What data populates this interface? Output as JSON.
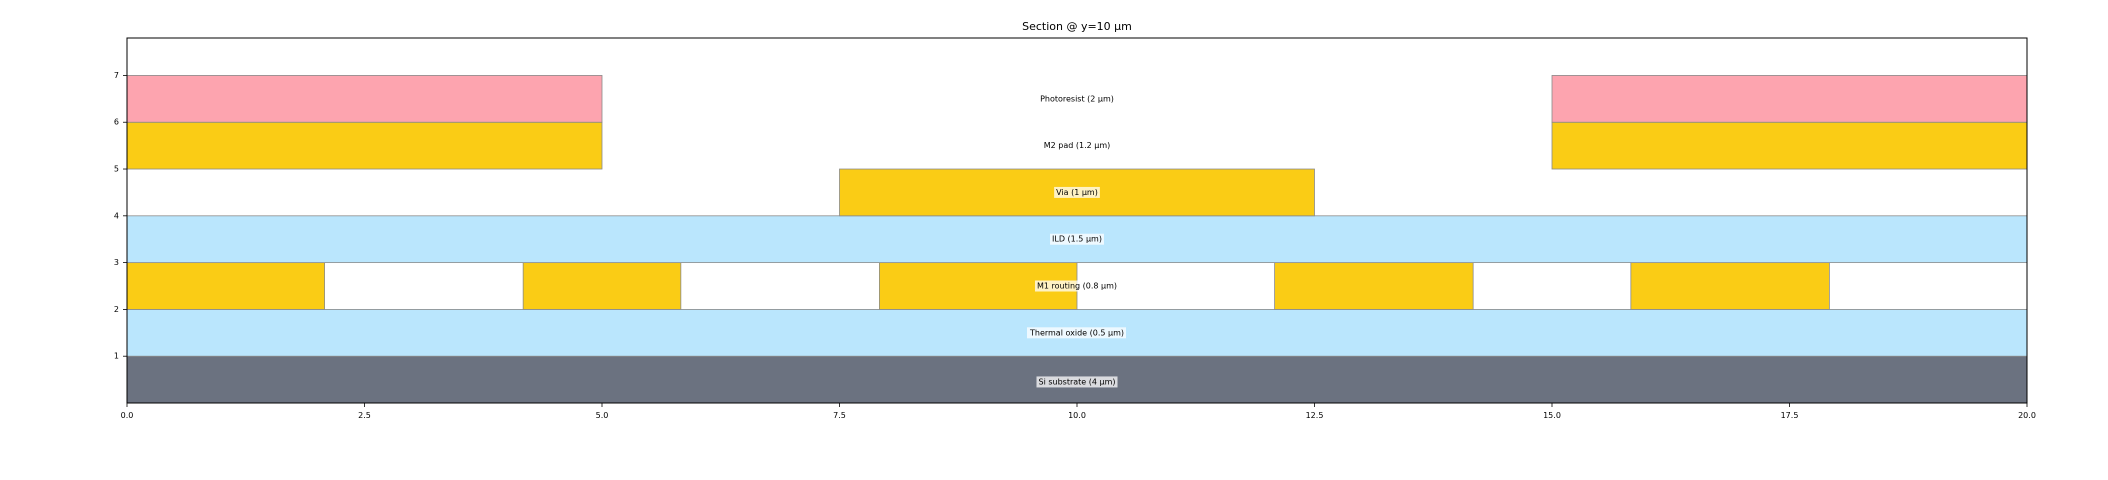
{
  "chart_data": {
    "type": "cross-section",
    "title": "Section @ y=10 µm",
    "xlabel": "",
    "ylabel": "",
    "xlim": [
      0,
      20
    ],
    "ylim": [
      0,
      7.8
    ],
    "x_ticks": [
      "0.0",
      "2.5",
      "5.0",
      "7.5",
      "10.0",
      "12.5",
      "15.0",
      "17.5",
      "20.0"
    ],
    "y_ticks": [
      "1",
      "2",
      "3",
      "4",
      "5",
      "6",
      "7"
    ],
    "grid": false,
    "legend": "none",
    "colors": {
      "substrate": "#6b7280",
      "oxide": "#bae6fd",
      "metal": "#facc15",
      "photoresist": "#fda4af",
      "edge": "#8a8a8a"
    },
    "layers": [
      {
        "label": "Si substrate  (4 µm)",
        "material": "substrate",
        "label_y": 0.45,
        "label_box": true,
        "blocks": [
          {
            "x0": 0,
            "x1": 20,
            "y0": -3,
            "y1": 1
          }
        ]
      },
      {
        "label": "Thermal oxide  (0.5 µm)",
        "material": "oxide",
        "label_y": 1.5,
        "label_box": true,
        "blocks": [
          {
            "x0": 0,
            "x1": 20,
            "y0": 1,
            "y1": 2
          }
        ]
      },
      {
        "label": "M1 routing  (0.8 µm)",
        "material": "metal",
        "label_y": 2.5,
        "label_box": true,
        "blocks": [
          {
            "x0": 0,
            "x1": 2.08,
            "y0": 2,
            "y1": 3
          },
          {
            "x0": 4.17,
            "x1": 5.83,
            "y0": 2,
            "y1": 3
          },
          {
            "x0": 7.92,
            "x1": 10.0,
            "y0": 2,
            "y1": 3
          },
          {
            "x0": 12.08,
            "x1": 14.17,
            "y0": 2,
            "y1": 3
          },
          {
            "x0": 15.83,
            "x1": 17.92,
            "y0": 2,
            "y1": 3
          }
        ]
      },
      {
        "label": "ILD  (1.5 µm)",
        "material": "oxide",
        "label_y": 3.5,
        "label_box": true,
        "blocks": [
          {
            "x0": 0,
            "x1": 20,
            "y0": 3,
            "y1": 4
          }
        ]
      },
      {
        "label": "Via  (1 µm)",
        "material": "metal",
        "label_y": 4.5,
        "label_box": true,
        "blocks": [
          {
            "x0": 7.5,
            "x1": 12.5,
            "y0": 4,
            "y1": 5
          }
        ]
      },
      {
        "label": "M2 pad  (1.2 µm)",
        "material": "metal",
        "label_y": 5.5,
        "label_box": false,
        "blocks": [
          {
            "x0": 0,
            "x1": 5,
            "y0": 5,
            "y1": 6
          },
          {
            "x0": 15,
            "x1": 20,
            "y0": 5,
            "y1": 6
          }
        ]
      },
      {
        "label": "Photoresist  (2 µm)",
        "material": "photoresist",
        "label_y": 6.5,
        "label_box": false,
        "blocks": [
          {
            "x0": 0,
            "x1": 5,
            "y0": 6,
            "y1": 7
          },
          {
            "x0": 15,
            "x1": 20,
            "y0": 6,
            "y1": 7
          }
        ]
      }
    ]
  }
}
